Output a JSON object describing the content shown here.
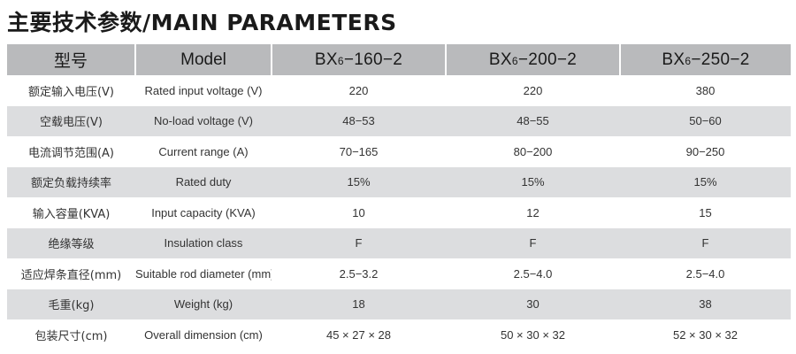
{
  "title": "主要技术参数/MAIN PARAMETERS",
  "table": {
    "header": {
      "cn": "型号",
      "en": "Model",
      "models": [
        {
          "prefix": "BX",
          "sub": "6",
          "suffix": "−160−2"
        },
        {
          "prefix": "BX",
          "sub": "6",
          "suffix": "−200−2"
        },
        {
          "prefix": "BX",
          "sub": "6",
          "suffix": "−250−2"
        }
      ]
    },
    "rows": [
      {
        "cn": "额定输入电压(V)",
        "en": "Rated input voltage (V)",
        "values": [
          "220",
          "220",
          "380"
        ]
      },
      {
        "cn": "空载电压(V)",
        "en": "No-load voltage (V)",
        "values": [
          "48−53",
          "48−55",
          "50−60"
        ]
      },
      {
        "cn": "电流调节范围(A)",
        "en": "Current range (A)",
        "values": [
          "70−165",
          "80−200",
          "90−250"
        ]
      },
      {
        "cn": "额定负载持续率",
        "en": "Rated duty",
        "values": [
          "15%",
          "15%",
          "15%"
        ]
      },
      {
        "cn": "输入容量(KVA)",
        "en": "Input capacity (KVA)",
        "values": [
          "10",
          "12",
          "15"
        ]
      },
      {
        "cn": "绝缘等级",
        "en": "Insulation class",
        "values": [
          "F",
          "F",
          "F"
        ]
      },
      {
        "cn": "适应焊条直径(mm)",
        "en": "Suitable rod diameter (mm)",
        "values": [
          "2.5−3.2",
          "2.5−4.0",
          "2.5−4.0"
        ]
      },
      {
        "cn": "毛重(kg)",
        "en": "Weight (kg)",
        "values": [
          "18",
          "30",
          "38"
        ]
      },
      {
        "cn": "包装尺寸(cm)",
        "en": "Overall dimension (cm)",
        "values": [
          "45 × 27 × 28",
          "50 × 30 × 32",
          "52 × 30 × 32"
        ]
      }
    ]
  }
}
